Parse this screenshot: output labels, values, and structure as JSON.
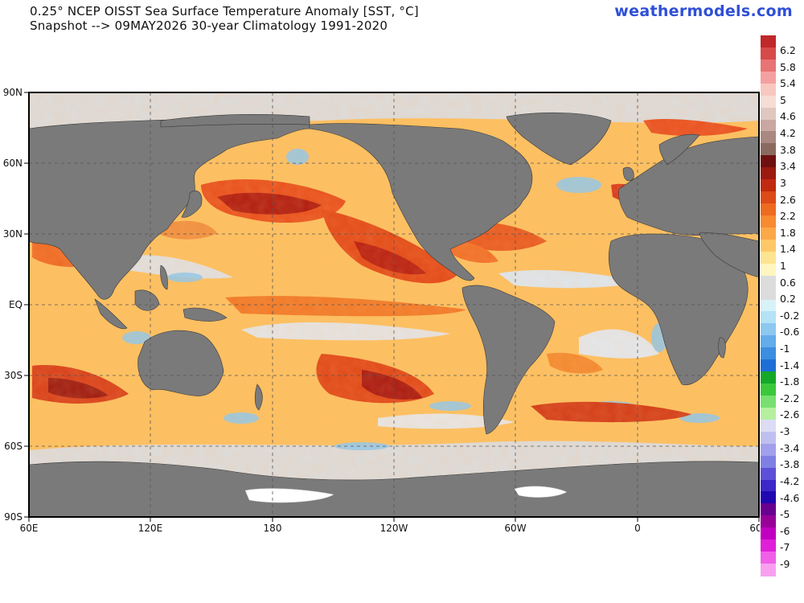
{
  "header": {
    "title_line1": "0.25° NCEP OISST Sea Surface Temperature Anomaly [SST, °C]",
    "title_line2": "Snapshot --> 09MAY2026   30-year Climatology 1991-2020",
    "brand": "weathermodels.com"
  },
  "map": {
    "lat_labels": [
      "90N",
      "60N",
      "30N",
      "EQ",
      "30S",
      "60S",
      "90S"
    ],
    "lon_labels": [
      "60E",
      "120E",
      "180",
      "120W",
      "60W",
      "0",
      "60"
    ],
    "colors": {
      "land": "#7a7a7a",
      "neutral_ocean": "#dcdcdc",
      "ice": "#ffffff",
      "border": "#000000",
      "grid": "#555555"
    }
  },
  "colorbar": {
    "labels": [
      "6.2",
      "5.8",
      "5.4",
      "5",
      "4.6",
      "4.2",
      "3.8",
      "3.4",
      "3",
      "2.6",
      "2.2",
      "1.8",
      "1.4",
      "1",
      "0.6",
      "0.2",
      "-0.2",
      "-0.6",
      "-1",
      "-1.4",
      "-1.8",
      "-2.2",
      "-2.6",
      "-3",
      "-3.4",
      "-3.8",
      "-4.2",
      "-4.6",
      "-5",
      "-6",
      "-7",
      "-9"
    ],
    "colors": [
      "#c0282a",
      "#d64a4a",
      "#e87474",
      "#f4a0a0",
      "#f8c8c0",
      "#f6ddd6",
      "#e0c8c0",
      "#c8a8a0",
      "#a88880",
      "#8a6a60",
      "#6e1010",
      "#9a1a10",
      "#c02a10",
      "#dc4a18",
      "#ee6a20",
      "#f88a30",
      "#fca848",
      "#fec868",
      "#fee490",
      "#fff6c0",
      "#dcdcdc",
      "#dcdcdc",
      "#d8f2fa",
      "#b4e2f6",
      "#8cc8f0",
      "#64acea",
      "#3c8ee0",
      "#1e6ed8",
      "#14a828",
      "#3cc83c",
      "#78e070",
      "#b4f0a0",
      "#dcdcf4",
      "#c0c0f0",
      "#a0a0ec",
      "#8080e4",
      "#5c50d8",
      "#3c28c8",
      "#2008b0",
      "#680090",
      "#980098",
      "#c000c0",
      "#e020d8",
      "#f060e8",
      "#f8a0f0"
    ]
  }
}
